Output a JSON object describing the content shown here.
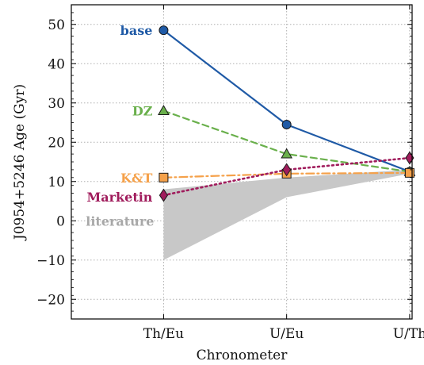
{
  "chart_data": {
    "type": "line",
    "title": "",
    "xlabel": "Chronometer",
    "ylabel": "J0954+5246 Age (Gyr)",
    "categories": [
      "Th/Eu",
      "U/Eu",
      "U/Th"
    ],
    "xlim": [
      -0.75,
      2.02
    ],
    "ylim": [
      -25,
      55
    ],
    "y_ticks": [
      -20,
      -10,
      0,
      10,
      20,
      30,
      40,
      50
    ],
    "y_tick_labels": [
      "−20",
      "−10",
      "0",
      "10",
      "20",
      "30",
      "40",
      "50"
    ],
    "grid": true,
    "series": [
      {
        "name": "base",
        "values": [
          48.5,
          24.5,
          12.5
        ],
        "color": "#1f5aa6",
        "marker": "circle",
        "line": "solid"
      },
      {
        "name": "DZ",
        "values": [
          28.0,
          17.0,
          12.5
        ],
        "color": "#6ab04c",
        "marker": "triangle",
        "line": "dashed"
      },
      {
        "name": "K&T",
        "values": [
          11.0,
          12.0,
          12.2
        ],
        "color": "#f5a14a",
        "marker": "square",
        "line": "dashdot"
      },
      {
        "name": "Marketin",
        "values": [
          6.5,
          13.0,
          16.0
        ],
        "color": "#a01c5c",
        "marker": "diamond",
        "line": "dotted"
      }
    ],
    "band": {
      "name": "literature",
      "color": "#c8c8c8",
      "x": [
        0,
        1,
        2
      ],
      "low": [
        -10,
        6,
        12
      ],
      "high": [
        8,
        11,
        13
      ]
    }
  }
}
